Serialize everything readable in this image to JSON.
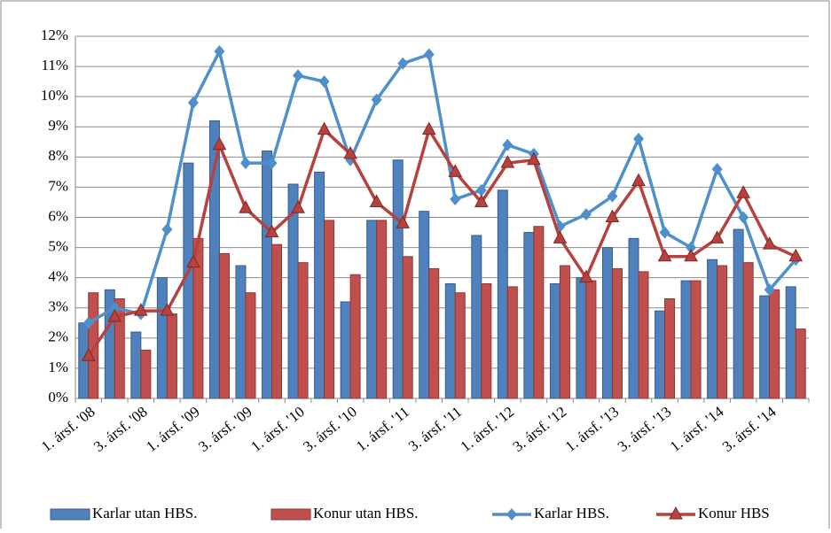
{
  "chart_data": {
    "type": "bar",
    "categories": [
      "1. ársf. '08",
      null,
      "3. ársf. '08",
      null,
      "1. ársf. '09",
      null,
      "3. ársf. '09",
      null,
      "1. ársf. '10",
      null,
      "3. ársf. '10",
      null,
      "1. ársf. '11",
      null,
      "3. ársf. '11",
      null,
      "1. ársf. '12",
      null,
      "3. ársf. '12",
      null,
      "1. ársf. '13",
      null,
      "3. ársf. '13",
      null,
      "1. ársf. '14",
      null,
      "3. ársf. '14",
      null
    ],
    "series": [
      {
        "name": "Karlar utan HBS.",
        "type": "bar",
        "color": "#4f81bd",
        "values": [
          2.5,
          3.6,
          2.2,
          4.0,
          7.8,
          9.2,
          4.4,
          8.2,
          7.1,
          7.5,
          3.2,
          5.9,
          7.9,
          6.2,
          3.8,
          5.4,
          6.9,
          5.5,
          3.8,
          4.0,
          5.0,
          5.3,
          2.9,
          3.9,
          4.6,
          5.6,
          3.4,
          3.7
        ]
      },
      {
        "name": "Konur utan HBS.",
        "type": "bar",
        "color": "#c0504d",
        "values": [
          3.5,
          3.3,
          1.6,
          2.8,
          5.3,
          4.8,
          3.5,
          5.1,
          4.5,
          5.9,
          4.1,
          5.9,
          4.7,
          4.3,
          3.5,
          3.8,
          3.7,
          5.7,
          4.4,
          3.9,
          4.3,
          4.2,
          3.3,
          3.9,
          4.4,
          4.5,
          3.6,
          2.3
        ]
      },
      {
        "name": "Karlar HBS.",
        "type": "line",
        "color": "#4f8fcc",
        "values": [
          2.5,
          3.0,
          2.8,
          5.6,
          9.8,
          11.5,
          7.8,
          7.8,
          10.7,
          10.5,
          7.9,
          9.9,
          11.1,
          11.4,
          6.6,
          6.9,
          8.4,
          8.1,
          5.7,
          6.1,
          6.7,
          8.6,
          5.5,
          5.0,
          7.6,
          6.0,
          3.6,
          4.6
        ]
      },
      {
        "name": "Konur HBS",
        "type": "line",
        "color": "#b8413d",
        "values": [
          1.4,
          2.7,
          2.9,
          2.9,
          4.5,
          8.4,
          6.3,
          5.5,
          6.3,
          8.9,
          8.1,
          6.5,
          5.8,
          8.9,
          7.5,
          6.5,
          7.8,
          7.9,
          5.3,
          4.0,
          6.0,
          7.2,
          4.7,
          4.7,
          5.3,
          6.8,
          5.1,
          4.7
        ]
      }
    ],
    "ylim": [
      0,
      12
    ],
    "yticks": [
      {
        "value": 0,
        "label": "0%"
      },
      {
        "value": 1,
        "label": "1%"
      },
      {
        "value": 2,
        "label": "2%"
      },
      {
        "value": 3,
        "label": "3%"
      },
      {
        "value": 4,
        "label": "4%"
      },
      {
        "value": 5,
        "label": "5%"
      },
      {
        "value": 6,
        "label": "6%"
      },
      {
        "value": 7,
        "label": "7%"
      },
      {
        "value": 8,
        "label": "8%"
      },
      {
        "value": 9,
        "label": "9%"
      },
      {
        "value": 10,
        "label": "10%"
      },
      {
        "value": 11,
        "label": "11%"
      },
      {
        "value": 12,
        "label": "12%"
      }
    ],
    "grid": true,
    "legend": "bottom"
  }
}
